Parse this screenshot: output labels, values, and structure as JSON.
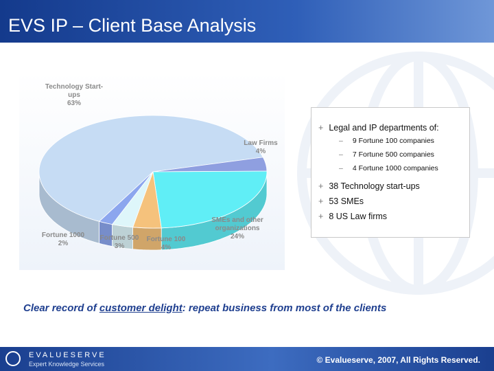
{
  "header": {
    "title": "EVS IP – Client Base Analysis"
  },
  "chart_data": {
    "type": "pie",
    "categories": [
      "Technology Start-ups",
      "Law Firms",
      "SMEs and other organizations",
      "Fortune 100",
      "Fortune 500",
      "Fortune 1000"
    ],
    "values": [
      63,
      4,
      24,
      4,
      3,
      2
    ],
    "value_labels": [
      "63%",
      "4%",
      "24%",
      "4%",
      "3%",
      "2%"
    ],
    "colors": [
      "#c6dcf4",
      "#8f9fe0",
      "#60eef6",
      "#f5c27c",
      "#def6fa",
      "#8ca6ee"
    ]
  },
  "bullets": [
    {
      "text": "Legal and IP departments of:",
      "sub": [
        "9 Fortune 100 companies",
        "7 Fortune 500 companies",
        "4 Fortune 1000 companies"
      ]
    },
    {
      "text": "38 Technology start-ups"
    },
    {
      "text": "53 SMEs"
    },
    {
      "text": "8 US Law firms"
    }
  ],
  "tagline": [
    "Clear record of ",
    "customer delight",
    ": repeat business from most of the clients"
  ],
  "footer": {
    "brand": "EVALUESERVE",
    "tagline": "Expert Knowledge Services",
    "copyright": "© Evalueserve, 2007, All Rights Reserved."
  }
}
